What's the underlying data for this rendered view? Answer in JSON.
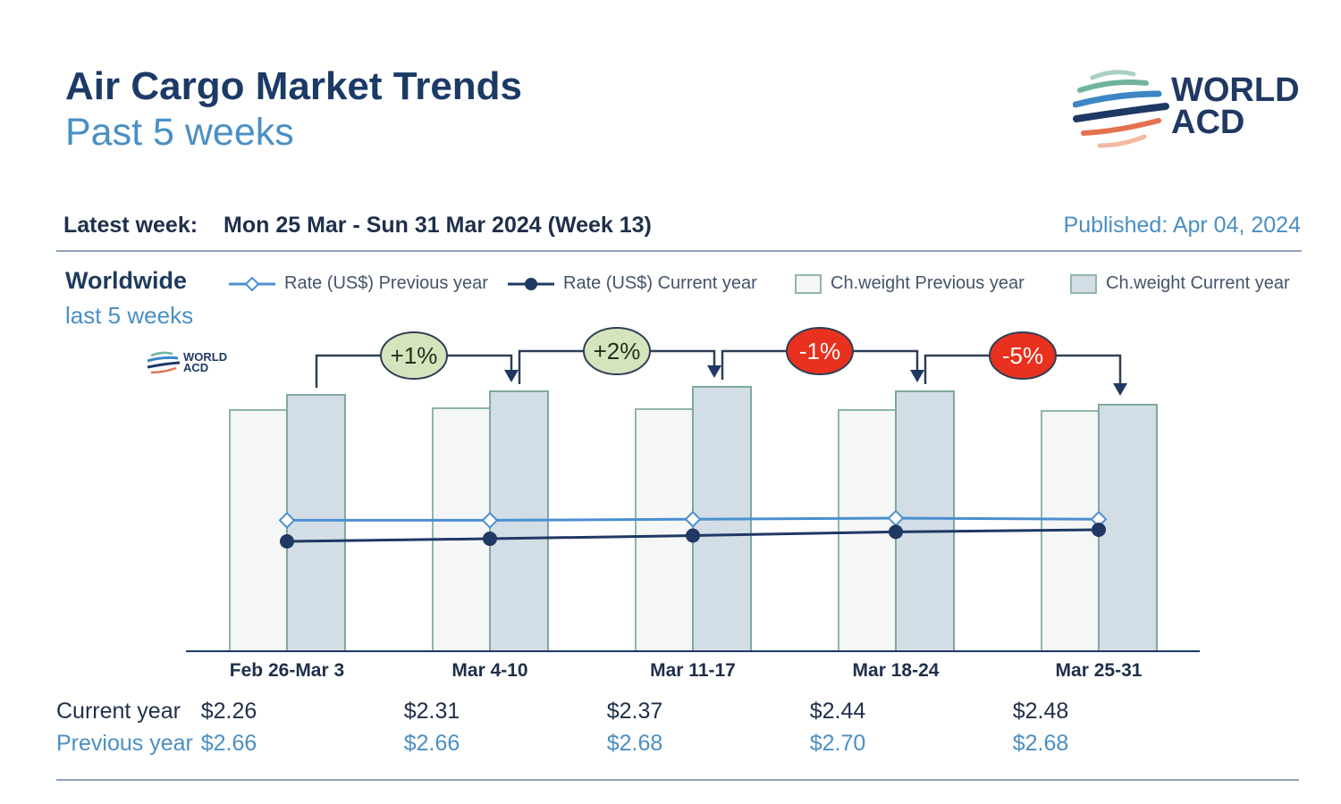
{
  "header": {
    "title": "Air Cargo Market Trends",
    "subtitle": "Past 5 weeks",
    "logo_text": [
      "WORLD",
      "ACD"
    ],
    "latest_label": "Latest week:",
    "latest_value": "Mon 25 Mar - Sun 31 Mar 2024 (Week 13)",
    "published": "Published: Apr 04, 2024"
  },
  "region": {
    "title": "Worldwide",
    "subtitle": "last 5 weeks"
  },
  "legend": [
    {
      "label": "Rate (US$) Previous year",
      "icon": "line-diamond-icon"
    },
    {
      "label": "Rate (US$) Current year",
      "icon": "line-dot-icon"
    },
    {
      "label": "Ch.weight Previous year",
      "icon": "bar-swatch-light-icon"
    },
    {
      "label": "Ch.weight Current year",
      "icon": "bar-swatch-dark-icon"
    }
  ],
  "table": {
    "current_label": "Current year",
    "previous_label": "Previous year"
  },
  "colors": {
    "navy": "#1b3a66",
    "light_blue": "#4a8fc4",
    "bar_prev": "#f5f6f6",
    "bar_cur": "#d3dde6",
    "bar_border": "#8fb6ab",
    "line_prev": "#4a8fd0",
    "line_cur": "#1f3864",
    "badge_pos": "#d5e4bd",
    "badge_neg": "#e8311e"
  },
  "chart_data": {
    "type": "bar",
    "title": "Air Cargo Market Trends",
    "categories": [
      "Feb 26-Mar 3",
      "Mar 4-10",
      "Mar 11-17",
      "Mar 18-24",
      "Mar 25-31"
    ],
    "series": [
      {
        "name": "Ch.weight Previous year",
        "type": "bar",
        "values": [
          270,
          272,
          271,
          270,
          269
        ],
        "note": "relative index, no axis shown"
      },
      {
        "name": "Ch.weight Current year",
        "type": "bar",
        "values": [
          287,
          291,
          296,
          291,
          276
        ],
        "note": "relative index, no axis shown"
      },
      {
        "name": "Rate (US$) Previous year",
        "type": "line",
        "values": [
          2.66,
          2.66,
          2.68,
          2.7,
          2.68
        ],
        "labels": [
          "$2.66",
          "$2.66",
          "$2.68",
          "$2.70",
          "$2.68"
        ]
      },
      {
        "name": "Rate (US$) Current year",
        "type": "line",
        "values": [
          2.26,
          2.31,
          2.37,
          2.44,
          2.48
        ],
        "labels": [
          "$2.26",
          "$2.31",
          "$2.37",
          "$2.44",
          "$2.48"
        ]
      }
    ],
    "weekly_change": [
      {
        "from": "Feb 26-Mar 3",
        "to": "Mar 4-10",
        "label": "+1%",
        "sign": "pos"
      },
      {
        "from": "Mar 4-10",
        "to": "Mar 11-17",
        "label": "+2%",
        "sign": "pos"
      },
      {
        "from": "Mar 11-17",
        "to": "Mar 18-24",
        "label": "-1%",
        "sign": "neg"
      },
      {
        "from": "Mar 18-24",
        "to": "Mar 25-31",
        "label": "-5%",
        "sign": "neg"
      }
    ],
    "legend_position": "top",
    "grid": false
  }
}
